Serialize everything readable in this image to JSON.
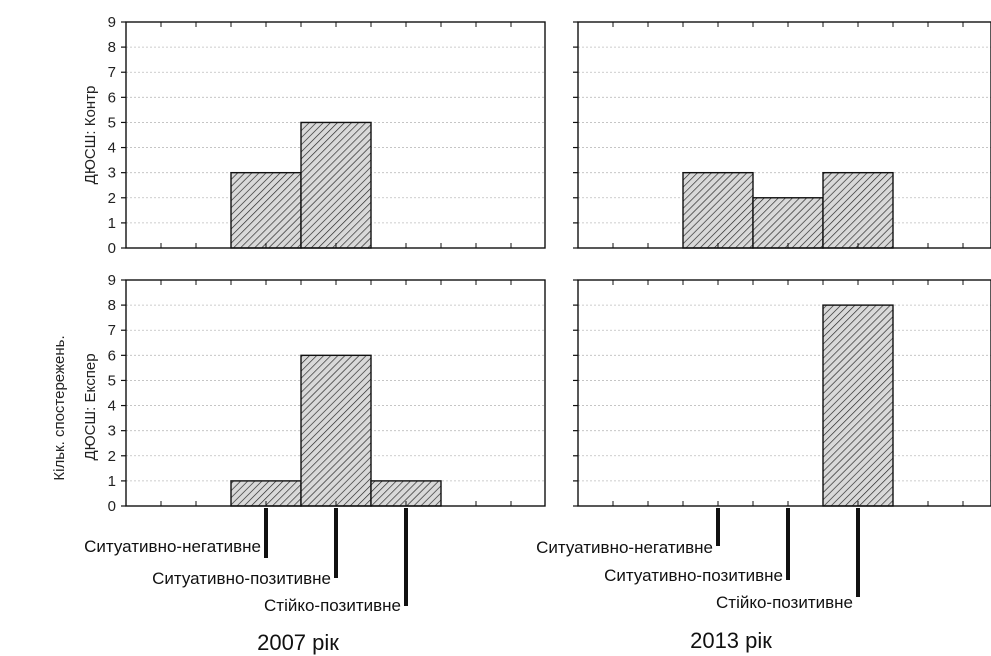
{
  "chart_data": {
    "type": "bar",
    "ylim": [
      0,
      9
    ],
    "yticks": [
      "0",
      "1",
      "2",
      "3",
      "4",
      "5",
      "6",
      "7",
      "8",
      "9"
    ],
    "categories": [
      "Ситуативно-негативне",
      "Ситуативно-позитивне",
      "Стійко-позитивне"
    ],
    "outer_ylabel": "Кільк. спостережень.",
    "rows": [
      {
        "label": "ДЮСШ: Контр"
      },
      {
        "label": "ДЮСШ: Експер"
      }
    ],
    "columns": [
      {
        "label": "2007 рік"
      },
      {
        "label": "2013 рік"
      }
    ],
    "panels": [
      {
        "row": 0,
        "col": 0,
        "values": [
          3,
          5,
          0
        ]
      },
      {
        "row": 0,
        "col": 1,
        "values": [
          3,
          2,
          3
        ]
      },
      {
        "row": 1,
        "col": 0,
        "values": [
          1,
          6,
          1
        ]
      },
      {
        "row": 1,
        "col": 1,
        "values": [
          0,
          0,
          8
        ]
      }
    ],
    "bar_fill": "hatched",
    "grid": true
  }
}
